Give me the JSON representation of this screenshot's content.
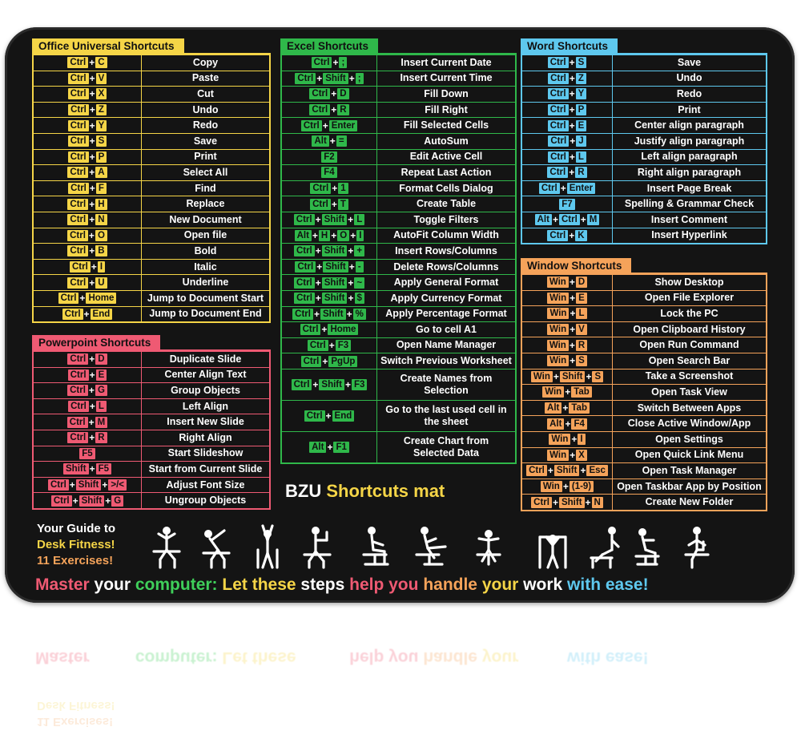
{
  "mat": {
    "brand": "BZU",
    "title": "Shortcuts mat",
    "guide": [
      {
        "text": "Your Guide to",
        "color": "#ffffff"
      },
      {
        "text": "Desk Fitness!",
        "color": "#f5d547"
      },
      {
        "text": "11 Exercises!",
        "color": "#f5a35a"
      }
    ],
    "motto": [
      {
        "text": "Master ",
        "color": "#ef5a73"
      },
      {
        "text": "your ",
        "color": "#ffffff"
      },
      {
        "text": "computer: ",
        "color": "#3fcf5a"
      },
      {
        "text": "Let these ",
        "color": "#f5d547"
      },
      {
        "text": "steps ",
        "color": "#ffffff"
      },
      {
        "text": "help you ",
        "color": "#ef5a73"
      },
      {
        "text": "handle ",
        "color": "#f5a35a"
      },
      {
        "text": "your ",
        "color": "#f5d547"
      },
      {
        "text": "work ",
        "color": "#ffffff"
      },
      {
        "text": "with ease!",
        "color": "#5ec8ee"
      }
    ]
  },
  "panels": [
    {
      "id": "office",
      "title": "Office Universal Shortcuts",
      "color": "#f5d547",
      "rows": [
        {
          "keys": [
            "Ctrl",
            "C"
          ],
          "action": "Copy"
        },
        {
          "keys": [
            "Ctrl",
            "V"
          ],
          "action": "Paste"
        },
        {
          "keys": [
            "Ctrl",
            "X"
          ],
          "action": "Cut"
        },
        {
          "keys": [
            "Ctrl",
            "Z"
          ],
          "action": "Undo"
        },
        {
          "keys": [
            "Ctrl",
            "Y"
          ],
          "action": "Redo"
        },
        {
          "keys": [
            "Ctrl",
            "S"
          ],
          "action": "Save"
        },
        {
          "keys": [
            "Ctrl",
            "P"
          ],
          "action": "Print"
        },
        {
          "keys": [
            "Ctrl",
            "A"
          ],
          "action": "Select All"
        },
        {
          "keys": [
            "Ctrl",
            "F"
          ],
          "action": "Find"
        },
        {
          "keys": [
            "Ctrl",
            "H"
          ],
          "action": "Replace"
        },
        {
          "keys": [
            "Ctrl",
            "N"
          ],
          "action": "New Document"
        },
        {
          "keys": [
            "Ctrl",
            "O"
          ],
          "action": "Open file"
        },
        {
          "keys": [
            "Ctrl",
            "B"
          ],
          "action": "Bold"
        },
        {
          "keys": [
            "Ctrl",
            "I"
          ],
          "action": "Italic"
        },
        {
          "keys": [
            "Ctrl",
            "U"
          ],
          "action": "Underline"
        },
        {
          "keys": [
            "Ctrl",
            "Home"
          ],
          "action": "Jump to Document Start"
        },
        {
          "keys": [
            "Ctrl",
            "End"
          ],
          "action": "Jump to Document End"
        }
      ]
    },
    {
      "id": "powerpoint",
      "title": "Powerpoint  Shortcuts",
      "color": "#ef5a73",
      "rows": [
        {
          "keys": [
            "Ctrl",
            "D"
          ],
          "action": "Duplicate Slide"
        },
        {
          "keys": [
            "Ctrl",
            "E"
          ],
          "action": "Center Align Text"
        },
        {
          "keys": [
            "Ctrl",
            "G"
          ],
          "action": "Group Objects"
        },
        {
          "keys": [
            "Ctrl",
            "L"
          ],
          "action": "Left Align"
        },
        {
          "keys": [
            "Ctrl",
            "M"
          ],
          "action": "Insert New Slide"
        },
        {
          "keys": [
            "Ctrl",
            "R"
          ],
          "action": "Right Align"
        },
        {
          "keys": [
            "F5"
          ],
          "action": "Start Slideshow"
        },
        {
          "keys": [
            "Shift",
            "F5"
          ],
          "action": "Start from Current Slide"
        },
        {
          "keys": [
            "Ctrl",
            "Shift",
            ">/<"
          ],
          "action": "Adjust Font Size"
        },
        {
          "keys": [
            "Ctrl",
            "Shift",
            "G"
          ],
          "action": "Ungroup Objects"
        }
      ]
    },
    {
      "id": "excel",
      "title": "Excel Shortcuts",
      "color": "#2fb84a",
      "rows": [
        {
          "keys": [
            "Ctrl",
            ";"
          ],
          "action": "Insert Current Date"
        },
        {
          "keys": [
            "Ctrl",
            "Shift",
            ";"
          ],
          "action": "Insert Current Time"
        },
        {
          "keys": [
            "Ctrl",
            "D"
          ],
          "action": "Fill Down"
        },
        {
          "keys": [
            "Ctrl",
            "R"
          ],
          "action": "Fill Right"
        },
        {
          "keys": [
            "Ctrl",
            "Enter"
          ],
          "action": "Fill Selected Cells"
        },
        {
          "keys": [
            "Alt",
            "="
          ],
          "action": "AutoSum"
        },
        {
          "keys": [
            "F2"
          ],
          "action": "Edit Active Cell"
        },
        {
          "keys": [
            "F4"
          ],
          "action": "Repeat Last Action"
        },
        {
          "keys": [
            "Ctrl",
            "1"
          ],
          "action": "Format Cells Dialog"
        },
        {
          "keys": [
            "Ctrl",
            "T"
          ],
          "action": "Create Table"
        },
        {
          "keys": [
            "Ctrl",
            "Shift",
            "L"
          ],
          "action": "Toggle Filters"
        },
        {
          "keys": [
            "Alt",
            "H",
            "O",
            "I"
          ],
          "action": "AutoFit Column Width"
        },
        {
          "keys": [
            "Ctrl",
            "Shift",
            "+"
          ],
          "action": "Insert Rows/Columns"
        },
        {
          "keys": [
            "Ctrl",
            "Shift",
            "-"
          ],
          "action": "Delete Rows/Columns"
        },
        {
          "keys": [
            "Ctrl",
            "Shift",
            "~"
          ],
          "action": "Apply General Format"
        },
        {
          "keys": [
            "Ctrl",
            "Shift",
            "$"
          ],
          "action": "Apply Currency Format"
        },
        {
          "keys": [
            "Ctrl",
            "Shift",
            "%"
          ],
          "action": "Apply Percentage Format"
        },
        {
          "keys": [
            "Ctrl",
            "Home"
          ],
          "action": "Go to cell A1"
        },
        {
          "keys": [
            "Ctrl",
            "F3"
          ],
          "action": "Open Name Manager"
        },
        {
          "keys": [
            "Ctrl",
            "PgUp"
          ],
          "action": "Switch Previous Worksheet"
        },
        {
          "keys": [
            "Ctrl",
            "Shift",
            "F3"
          ],
          "action": "Create Names from Selection",
          "tall": true
        },
        {
          "keys": [
            "Ctrl",
            "End"
          ],
          "action": "Go to the last used cell in the sheet",
          "tall": true
        },
        {
          "keys": [
            "Alt",
            "F1"
          ],
          "action": "Create Chart from Selected Data",
          "tall": true
        }
      ]
    },
    {
      "id": "word",
      "title": "Word Shortcuts",
      "color": "#5ec8ee",
      "rows": [
        {
          "keys": [
            "Ctrl",
            "S"
          ],
          "action": "Save"
        },
        {
          "keys": [
            "Ctrl",
            "Z"
          ],
          "action": "Undo"
        },
        {
          "keys": [
            "Ctrl",
            "Y"
          ],
          "action": "Redo"
        },
        {
          "keys": [
            "Ctrl",
            "P"
          ],
          "action": "Print"
        },
        {
          "keys": [
            "Ctrl",
            "E"
          ],
          "action": "Center align paragraph"
        },
        {
          "keys": [
            "Ctrl",
            "J"
          ],
          "action": "Justify align paragraph"
        },
        {
          "keys": [
            "Ctrl",
            "L"
          ],
          "action": "Left align paragraph"
        },
        {
          "keys": [
            "Ctrl",
            "R"
          ],
          "action": "Right align paragraph"
        },
        {
          "keys": [
            "Ctrl",
            "Enter"
          ],
          "action": "Insert Page Break"
        },
        {
          "keys": [
            "F7"
          ],
          "action": "Spelling & Grammar Check"
        },
        {
          "keys": [
            "Alt",
            "Ctrl",
            "M"
          ],
          "action": "Insert Comment"
        },
        {
          "keys": [
            "Ctrl",
            "K"
          ],
          "action": "Insert Hyperlink"
        }
      ]
    },
    {
      "id": "window",
      "title": "Window Shortcuts",
      "color": "#f5a35a",
      "rows": [
        {
          "keys": [
            "Win",
            "D"
          ],
          "action": "Show Desktop"
        },
        {
          "keys": [
            "Win",
            "E"
          ],
          "action": "Open File Explorer"
        },
        {
          "keys": [
            "Win",
            "L"
          ],
          "action": "Lock the PC"
        },
        {
          "keys": [
            "Win",
            "V"
          ],
          "action": "Open Clipboard History"
        },
        {
          "keys": [
            "Win",
            "R"
          ],
          "action": "Open Run Command"
        },
        {
          "keys": [
            "Win",
            "S"
          ],
          "action": "Open Search Bar"
        },
        {
          "keys": [
            "Win",
            "Shift",
            "S"
          ],
          "action": "Take a Screenshot"
        },
        {
          "keys": [
            "Win",
            "Tab"
          ],
          "action": "Open Task View"
        },
        {
          "keys": [
            "Alt",
            "Tab"
          ],
          "action": "Switch Between Apps"
        },
        {
          "keys": [
            "Alt",
            "F4"
          ],
          "action": "Close Active Window/App"
        },
        {
          "keys": [
            "Win",
            "I"
          ],
          "action": "Open Settings"
        },
        {
          "keys": [
            "Win",
            "X"
          ],
          "action": "Open Quick Link Menu"
        },
        {
          "keys": [
            "Ctrl",
            "Shift",
            "Esc"
          ],
          "action": "Open Task Manager"
        },
        {
          "keys": [
            "Win",
            "(1-9)"
          ],
          "action": "Open Taskbar App by Position"
        },
        {
          "keys": [
            "Ctrl",
            "Shift",
            "N"
          ],
          "action": "Create New Folder"
        }
      ]
    }
  ],
  "exercise_icons": [
    "neck-stretch-icon",
    "side-stretch-icon",
    "arms-up-stretch-icon",
    "shoulder-stretch-icon",
    "seated-twist-icon",
    "leg-extension-icon",
    "back-bend-icon",
    "desk-push-icon",
    "chair-dip-icon",
    "torso-rotation-icon",
    "knee-raise-icon"
  ]
}
